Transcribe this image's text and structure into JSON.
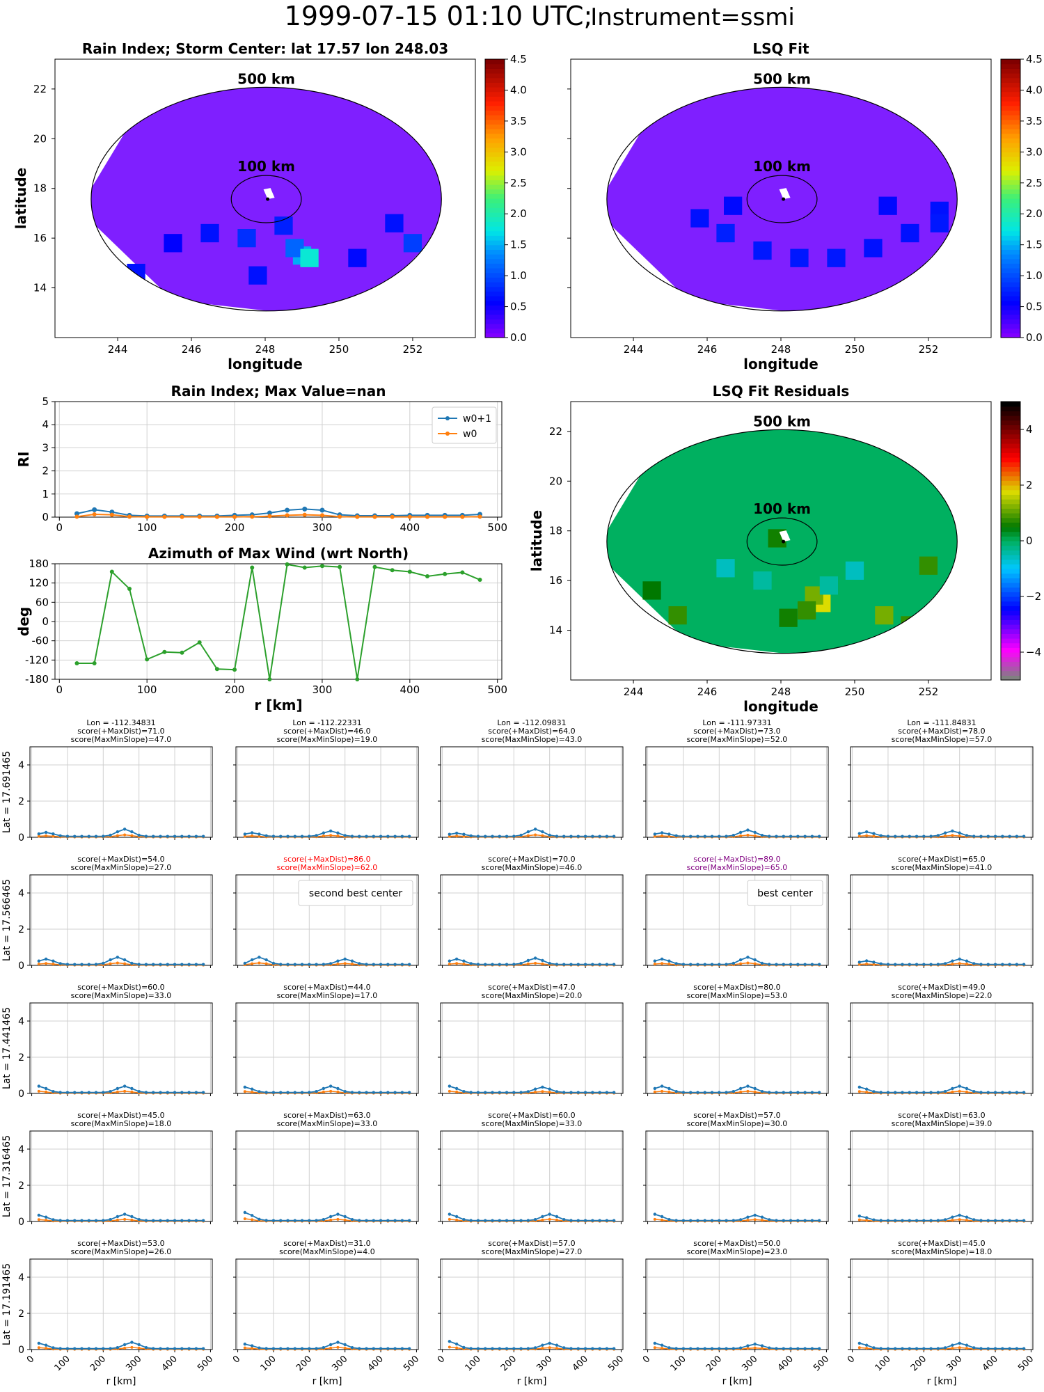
{
  "figure": {
    "title": "1999-07-15 01:10 UTC;",
    "title_suffix": "Instrument=ssmi"
  },
  "colors": {
    "series_w01": "#1f77b4",
    "series_w0": "#ff7f0e",
    "azimuth": "#2ca02c",
    "grid": "#d0d0d0",
    "field_bg": "#7f1fff",
    "residual_bg": "#00b060",
    "highlight_red": "#ff0000",
    "highlight_purple": "#800080"
  },
  "chart_data": [
    {
      "id": "rain_index_map",
      "type": "heatmap",
      "title": "Rain Index; Storm Center: lat 17.57 lon 248.03",
      "xlabel": "longitude",
      "ylabel": "latitude",
      "xlim": [
        242.3,
        253.7
      ],
      "ylim": [
        12.0,
        23.2
      ],
      "xticks": [
        244,
        246,
        248,
        250,
        252
      ],
      "yticks": [
        14,
        16,
        18,
        20,
        22
      ],
      "circle_labels": [
        "500 km",
        "100 km"
      ],
      "colorbar": {
        "min": 0.0,
        "max": 4.5,
        "ticks": [
          "0.0",
          "0.5",
          "1.0",
          "1.5",
          "2.0",
          "2.5",
          "3.0",
          "3.5",
          "4.0",
          "4.5"
        ],
        "colormap": "jet"
      },
      "storm_center": {
        "lat": 17.57,
        "lon": 248.03
      }
    },
    {
      "id": "lsq_fit_map",
      "type": "heatmap",
      "title": "LSQ Fit",
      "xlabel": "longitude",
      "xticks": [
        244,
        246,
        248,
        250,
        252
      ],
      "circle_labels": [
        "500 km",
        "100 km"
      ],
      "colorbar": {
        "min": 0.0,
        "max": 4.5,
        "ticks": [
          "0.0",
          "0.5",
          "1.0",
          "1.5",
          "2.0",
          "2.5",
          "3.0",
          "3.5",
          "4.0",
          "4.5"
        ],
        "colormap": "jet"
      }
    },
    {
      "id": "rain_index_profile",
      "type": "line",
      "title": "Rain Index; Max Value=nan",
      "ylabel": "RI",
      "xlim": [
        0,
        500
      ],
      "ylim": [
        0,
        5
      ],
      "xticks": [
        0,
        100,
        200,
        300,
        400,
        500
      ],
      "yticks": [
        0,
        1,
        2,
        3,
        4,
        5
      ],
      "legend": "top-right",
      "x": [
        20,
        40,
        60,
        80,
        100,
        120,
        140,
        160,
        180,
        200,
        220,
        240,
        260,
        280,
        300,
        320,
        340,
        360,
        380,
        400,
        420,
        440,
        460,
        480
      ],
      "series": [
        {
          "name": "w0+1",
          "marker": "star",
          "values": [
            0.15,
            0.32,
            0.22,
            0.08,
            0.05,
            0.05,
            0.05,
            0.05,
            0.05,
            0.08,
            0.1,
            0.18,
            0.3,
            0.35,
            0.3,
            0.1,
            0.06,
            0.06,
            0.06,
            0.08,
            0.08,
            0.08,
            0.08,
            0.12
          ]
        },
        {
          "name": "w0",
          "marker": "dot",
          "values": [
            0.02,
            0.12,
            0.1,
            0.02,
            0.01,
            0.01,
            0.01,
            0.01,
            0.01,
            0.01,
            0.02,
            0.04,
            0.08,
            0.1,
            0.08,
            0.02,
            0.01,
            0.01,
            0.01,
            0.01,
            0.01,
            0.01,
            0.01,
            0.02
          ]
        }
      ]
    },
    {
      "id": "azimuth_max_wind",
      "type": "line",
      "title": "Azimuth of Max Wind (wrt North)",
      "xlabel": "r [km]",
      "ylabel": "deg",
      "xlim": [
        0,
        500
      ],
      "ylim": [
        -180,
        180
      ],
      "xticks": [
        0,
        100,
        200,
        300,
        400,
        500
      ],
      "yticks": [
        180,
        120,
        60,
        0,
        -60,
        -120,
        -180
      ],
      "x": [
        20,
        40,
        60,
        80,
        100,
        120,
        140,
        160,
        180,
        200,
        220,
        240,
        260,
        280,
        300,
        320,
        340,
        360,
        380,
        400,
        420,
        440,
        460,
        480
      ],
      "series": [
        {
          "values": [
            -130,
            -130,
            155,
            102,
            -118,
            -95,
            -97,
            -65,
            -148,
            -150,
            168,
            -180,
            178,
            168,
            173,
            170,
            -180,
            170,
            160,
            155,
            141,
            148,
            153,
            130
          ]
        }
      ]
    },
    {
      "id": "lsq_fit_residuals",
      "type": "heatmap",
      "title": "LSQ Fit Residuals",
      "xlabel": "longitude",
      "ylabel": "latitude",
      "xticks": [
        244,
        246,
        248,
        250,
        252
      ],
      "yticks": [
        14,
        16,
        18,
        20,
        22
      ],
      "circle_labels": [
        "500 km",
        "100 km"
      ],
      "colorbar": {
        "min": -5,
        "max": 5,
        "ticks": [
          "4",
          "2",
          "0",
          "−2",
          "−4"
        ],
        "colormap": "diverging"
      }
    }
  ],
  "grid": {
    "col_titles": [
      "Lon = -112.34831",
      "Lon = -112.22331",
      "Lon = -112.09831",
      "Lon = -111.97331",
      "Lon = -111.84831"
    ],
    "row_labels": [
      "Lat = 17.691465",
      "Lat = 17.566465",
      "Lat = 17.441465",
      "Lat = 17.316465",
      "Lat = 17.191465"
    ],
    "xlabel": "r [km]",
    "xticks": [
      "0",
      "100",
      "200",
      "300",
      "400",
      "500"
    ],
    "yticks": [
      "0",
      "2",
      "4"
    ],
    "cells": [
      [
        {
          "s1": "score(+MaxDist)=71.0",
          "s2": "score(MaxMinSlope)=47.0",
          "peaks": [
            [
              1,
              0.22
            ],
            [
              12,
              0.4
            ]
          ]
        },
        {
          "s1": "score(+MaxDist)=46.0",
          "s2": "score(MaxMinSlope)=19.0",
          "peaks": [
            [
              1,
              0.2
            ],
            [
              12,
              0.3
            ]
          ]
        },
        {
          "s1": "score(+MaxDist)=64.0",
          "s2": "score(MaxMinSlope)=43.0",
          "peaks": [
            [
              1,
              0.18
            ],
            [
              12,
              0.4
            ]
          ]
        },
        {
          "s1": "score(+MaxDist)=73.0",
          "s2": "score(MaxMinSlope)=52.0",
          "peaks": [
            [
              1,
              0.2
            ],
            [
              13,
              0.35
            ]
          ]
        },
        {
          "s1": "score(+MaxDist)=78.0",
          "s2": "score(MaxMinSlope)=57.0",
          "peaks": [
            [
              1,
              0.25
            ],
            [
              13,
              0.3
            ]
          ]
        }
      ],
      [
        {
          "s1": "score(+MaxDist)=54.0",
          "s2": "score(MaxMinSlope)=27.0",
          "peaks": [
            [
              1,
              0.3
            ],
            [
              11,
              0.4
            ]
          ]
        },
        {
          "s1": "score(+MaxDist)=86.0",
          "s2": "score(MaxMinSlope)=62.0",
          "color": "red",
          "legend": "second best center",
          "peaks": [
            [
              2,
              0.4
            ],
            [
              14,
              0.3
            ]
          ]
        },
        {
          "s1": "score(+MaxDist)=70.0",
          "s2": "score(MaxMinSlope)=46.0",
          "peaks": [
            [
              1,
              0.3
            ],
            [
              12,
              0.35
            ]
          ]
        },
        {
          "s1": "score(+MaxDist)=89.0",
          "s2": "score(MaxMinSlope)=65.0",
          "color": "purple",
          "legend": "best center",
          "peaks": [
            [
              1,
              0.3
            ],
            [
              13,
              0.4
            ]
          ]
        },
        {
          "s1": "score(+MaxDist)=65.0",
          "s2": "score(MaxMinSlope)=41.0",
          "peaks": [
            [
              1,
              0.2
            ],
            [
              14,
              0.3
            ]
          ]
        }
      ],
      [
        {
          "s1": "score(+MaxDist)=60.0",
          "s2": "score(MaxMinSlope)=33.0",
          "peaks": [
            [
              0,
              0.35
            ],
            [
              12,
              0.35
            ]
          ]
        },
        {
          "s1": "score(+MaxDist)=44.0",
          "s2": "score(MaxMinSlope)=17.0",
          "peaks": [
            [
              0,
              0.3
            ],
            [
              12,
              0.35
            ]
          ]
        },
        {
          "s1": "score(+MaxDist)=47.0",
          "s2": "score(MaxMinSlope)=20.0",
          "peaks": [
            [
              0,
              0.35
            ],
            [
              13,
              0.3
            ]
          ]
        },
        {
          "s1": "score(+MaxDist)=80.0",
          "s2": "score(MaxMinSlope)=53.0",
          "peaks": [
            [
              1,
              0.35
            ],
            [
              13,
              0.35
            ]
          ]
        },
        {
          "s1": "score(+MaxDist)=49.0",
          "s2": "score(MaxMinSlope)=22.0",
          "peaks": [
            [
              0,
              0.3
            ],
            [
              14,
              0.35
            ]
          ]
        }
      ],
      [
        {
          "s1": "score(+MaxDist)=45.0",
          "s2": "score(MaxMinSlope)=18.0",
          "peaks": [
            [
              0,
              0.3
            ],
            [
              12,
              0.35
            ]
          ]
        },
        {
          "s1": "score(+MaxDist)=63.0",
          "s2": "score(MaxMinSlope)=33.0",
          "peaks": [
            [
              0,
              0.45
            ],
            [
              13,
              0.35
            ]
          ]
        },
        {
          "s1": "score(+MaxDist)=60.0",
          "s2": "score(MaxMinSlope)=33.0",
          "peaks": [
            [
              0,
              0.35
            ],
            [
              14,
              0.35
            ]
          ]
        },
        {
          "s1": "score(+MaxDist)=57.0",
          "s2": "score(MaxMinSlope)=30.0",
          "peaks": [
            [
              0,
              0.35
            ],
            [
              14,
              0.3
            ]
          ]
        },
        {
          "s1": "score(+MaxDist)=63.0",
          "s2": "score(MaxMinSlope)=39.0",
          "peaks": [
            [
              0,
              0.25
            ],
            [
              14,
              0.3
            ]
          ]
        }
      ],
      [
        {
          "s1": "score(+MaxDist)=53.0",
          "s2": "score(MaxMinSlope)=26.0",
          "peaks": [
            [
              0,
              0.3
            ],
            [
              13,
              0.35
            ]
          ]
        },
        {
          "s1": "score(+MaxDist)=31.0",
          "s2": "score(MaxMinSlope)=4.0",
          "peaks": [
            [
              0,
              0.25
            ],
            [
              13,
              0.35
            ]
          ]
        },
        {
          "s1": "score(+MaxDist)=57.0",
          "s2": "score(MaxMinSlope)=27.0",
          "peaks": [
            [
              0,
              0.4
            ],
            [
              14,
              0.3
            ]
          ]
        },
        {
          "s1": "score(+MaxDist)=50.0",
          "s2": "score(MaxMinSlope)=23.0",
          "peaks": [
            [
              0,
              0.3
            ],
            [
              14,
              0.25
            ]
          ]
        },
        {
          "s1": "score(+MaxDist)=45.0",
          "s2": "score(MaxMinSlope)=18.0",
          "peaks": [
            [
              0,
              0.3
            ],
            [
              14,
              0.3
            ]
          ]
        }
      ]
    ]
  }
}
